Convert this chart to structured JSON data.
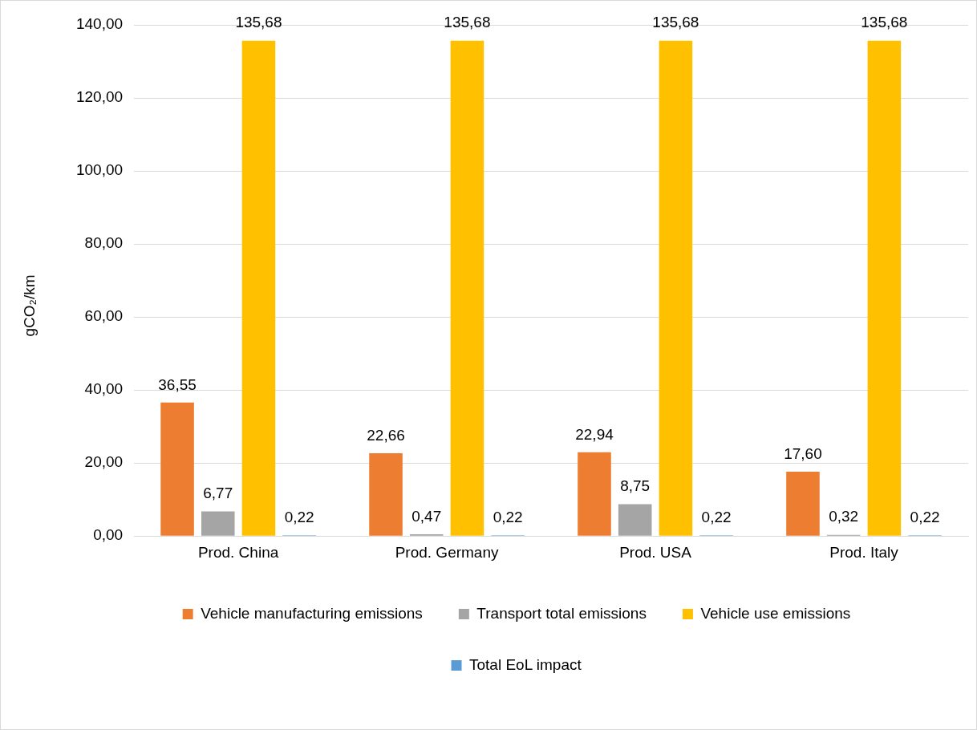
{
  "chart_data": {
    "type": "bar",
    "ylabel": "gCO₂/km",
    "categories": [
      "Prod. China",
      "Prod. Germany",
      "Prod. USA",
      "Prod. Italy"
    ],
    "series": [
      {
        "name": "Vehicle manufacturing emissions",
        "color": "#ed7d31",
        "values": [
          36.55,
          22.66,
          22.94,
          17.6
        ],
        "value_labels": [
          "36,55",
          "22,66",
          "22,94",
          "17,60"
        ]
      },
      {
        "name": "Transport total emissions",
        "color": "#a5a5a5",
        "values": [
          6.77,
          0.47,
          8.75,
          0.32
        ],
        "value_labels": [
          "6,77",
          "0,47",
          "8,75",
          "0,32"
        ]
      },
      {
        "name": "Vehicle use emissions",
        "color": "#ffc000",
        "values": [
          135.68,
          135.68,
          135.68,
          135.68
        ],
        "value_labels": [
          "135,68",
          "135,68",
          "135,68",
          "135,68"
        ]
      },
      {
        "name": "Total EoL impact",
        "color": "#5b9bd5",
        "values": [
          0.22,
          0.22,
          0.22,
          0.22
        ],
        "value_labels": [
          "0,22",
          "0,22",
          "0,22",
          "0,22"
        ]
      }
    ],
    "ylim": [
      0,
      140
    ],
    "yticks": [
      {
        "value": 0,
        "label": "0,00"
      },
      {
        "value": 20,
        "label": "20,00"
      },
      {
        "value": 40,
        "label": "40,00"
      },
      {
        "value": 60,
        "label": "60,00"
      },
      {
        "value": 80,
        "label": "80,00"
      },
      {
        "value": 100,
        "label": "100,00"
      },
      {
        "value": 120,
        "label": "120,00"
      },
      {
        "value": 140,
        "label": "140,00"
      }
    ],
    "grid": "y",
    "legend": "bottom"
  }
}
